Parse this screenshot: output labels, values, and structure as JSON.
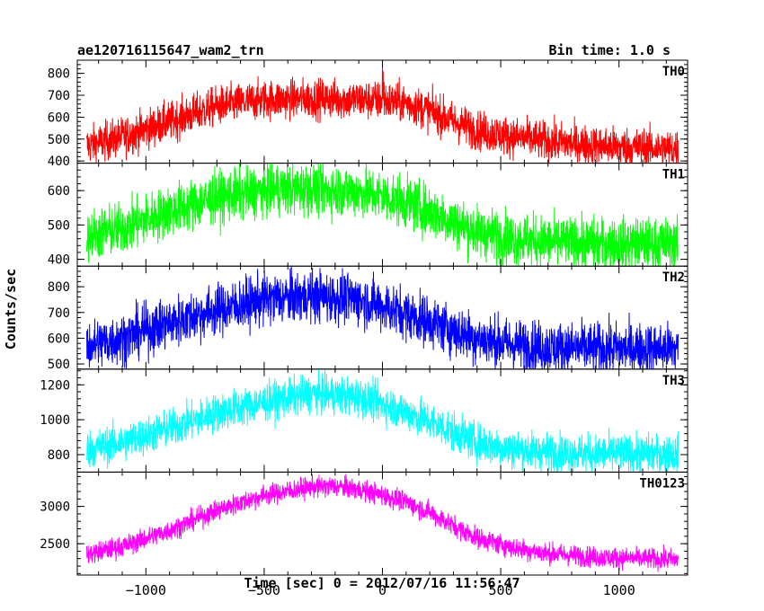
{
  "header": {
    "title": "ae120716115647_wam2_trn",
    "bin_time": "Bin time: 1.0 s"
  },
  "axes": {
    "xlabel": "Time [sec] 0 = 2012/07/16 11:56:47",
    "ylabel": "Counts/sec",
    "xlim": [
      -1290,
      1290
    ],
    "xticks": [
      -1000,
      -500,
      0,
      500,
      1000
    ],
    "xtick_labels": [
      "−1000",
      "−500",
      "0",
      "500",
      "1000"
    ]
  },
  "chart_data": {
    "type": "line",
    "title": "ae120716115647_wam2_trn",
    "xlabel": "Time [sec] 0 = 2012/07/16 11:56:47",
    "ylabel": "Counts/sec",
    "x_range": [
      -1250,
      1250
    ],
    "bin_time_s": 1.0,
    "panels": [
      {
        "name": "TH0",
        "color": "#ff0000",
        "ylim": [
          390,
          860
        ],
        "yticks": [
          400,
          500,
          600,
          700,
          800
        ],
        "noise": 45,
        "trend": [
          [
            -1250,
            470
          ],
          [
            -1100,
            510
          ],
          [
            -900,
            580
          ],
          [
            -700,
            650
          ],
          [
            -500,
            680
          ],
          [
            -300,
            685
          ],
          [
            -100,
            680
          ],
          [
            0,
            675
          ],
          [
            100,
            665
          ],
          [
            200,
            630
          ],
          [
            300,
            580
          ],
          [
            400,
            540
          ],
          [
            550,
            510
          ],
          [
            700,
            490
          ],
          [
            900,
            470
          ],
          [
            1100,
            460
          ],
          [
            1250,
            455
          ]
        ],
        "spikes": [
          [
            0,
            850
          ],
          [
            3,
            810
          ],
          [
            7,
            760
          ]
        ]
      },
      {
        "name": "TH1",
        "color": "#00ff00",
        "ylim": [
          380,
          680
        ],
        "yticks": [
          400,
          500,
          600
        ],
        "noise": 38,
        "trend": [
          [
            -1250,
            470
          ],
          [
            -1100,
            490
          ],
          [
            -900,
            540
          ],
          [
            -700,
            580
          ],
          [
            -500,
            600
          ],
          [
            -300,
            605
          ],
          [
            -100,
            595
          ],
          [
            0,
            585
          ],
          [
            100,
            565
          ],
          [
            200,
            540
          ],
          [
            300,
            510
          ],
          [
            400,
            480
          ],
          [
            550,
            460
          ],
          [
            700,
            450
          ],
          [
            900,
            445
          ],
          [
            1100,
            445
          ],
          [
            1250,
            445
          ]
        ]
      },
      {
        "name": "TH2",
        "color": "#0000ff",
        "ylim": [
          480,
          880
        ],
        "yticks": [
          500,
          600,
          700,
          800
        ],
        "noise": 50,
        "trend": [
          [
            -1250,
            570
          ],
          [
            -1100,
            600
          ],
          [
            -900,
            660
          ],
          [
            -700,
            710
          ],
          [
            -500,
            750
          ],
          [
            -300,
            765
          ],
          [
            -100,
            750
          ],
          [
            0,
            725
          ],
          [
            100,
            695
          ],
          [
            200,
            665
          ],
          [
            300,
            630
          ],
          [
            400,
            600
          ],
          [
            550,
            575
          ],
          [
            700,
            565
          ],
          [
            900,
            560
          ],
          [
            1100,
            560
          ],
          [
            1250,
            560
          ]
        ]
      },
      {
        "name": "TH3",
        "color": "#00ffff",
        "ylim": [
          700,
          1290
        ],
        "yticks": [
          800,
          1000,
          1200
        ],
        "noise": 55,
        "trend": [
          [
            -1250,
            830
          ],
          [
            -1100,
            870
          ],
          [
            -900,
            950
          ],
          [
            -700,
            1040
          ],
          [
            -500,
            1100
          ],
          [
            -300,
            1150
          ],
          [
            -100,
            1130
          ],
          [
            0,
            1090
          ],
          [
            100,
            1045
          ],
          [
            200,
            990
          ],
          [
            300,
            930
          ],
          [
            400,
            870
          ],
          [
            550,
            830
          ],
          [
            700,
            815
          ],
          [
            900,
            805
          ],
          [
            1100,
            805
          ],
          [
            1250,
            805
          ]
        ]
      },
      {
        "name": "TH0123",
        "color": "#ff00ff",
        "ylim": [
          2080,
          3460
        ],
        "yticks": [
          2500,
          3000
        ],
        "noise": 70,
        "trend": [
          [
            -1250,
            2360
          ],
          [
            -1100,
            2460
          ],
          [
            -900,
            2680
          ],
          [
            -700,
            2950
          ],
          [
            -500,
            3150
          ],
          [
            -300,
            3260
          ],
          [
            -200,
            3270
          ],
          [
            -100,
            3230
          ],
          [
            0,
            3150
          ],
          [
            100,
            3060
          ],
          [
            200,
            2920
          ],
          [
            300,
            2740
          ],
          [
            400,
            2580
          ],
          [
            550,
            2450
          ],
          [
            700,
            2370
          ],
          [
            900,
            2320
          ],
          [
            1100,
            2300
          ],
          [
            1250,
            2290
          ]
        ]
      }
    ]
  }
}
